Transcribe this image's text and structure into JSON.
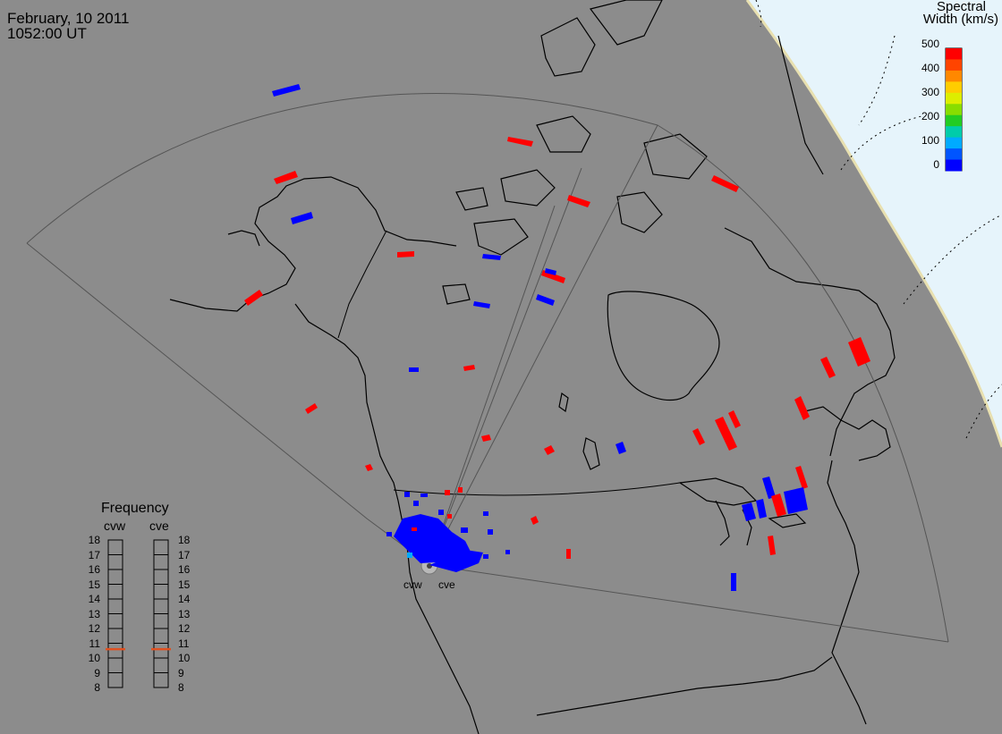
{
  "header": {
    "date": "February, 10 2011",
    "time": "1052:00 UT"
  },
  "colorbar": {
    "title_line1": "Spectral",
    "title_line2": "Width (km/s)",
    "ticks": [
      "500",
      "400",
      "300",
      "200",
      "100",
      "0"
    ],
    "colors": [
      "#ff0000",
      "#ff4400",
      "#ff8800",
      "#ffcc00",
      "#ddee00",
      "#88dd00",
      "#22cc22",
      "#00ccaa",
      "#00aaff",
      "#0055ff",
      "#0000ff"
    ]
  },
  "frequency": {
    "title": "Frequency",
    "channels": [
      "cvw",
      "cve"
    ],
    "ticks": [
      "18",
      "17",
      "16",
      "15",
      "14",
      "13",
      "12",
      "11",
      "10",
      "9",
      "8"
    ],
    "cvw_mhz": 10.6,
    "cve_mhz": 10.6,
    "marker_color": "#e05020"
  },
  "stations": [
    "cvw",
    "cve"
  ],
  "colors": {
    "background": "#8c8c8c",
    "dayside": "#e6f4fb",
    "coast": "#000000",
    "fov": "#555555",
    "red": "#ff0000",
    "blue": "#0000ff"
  }
}
